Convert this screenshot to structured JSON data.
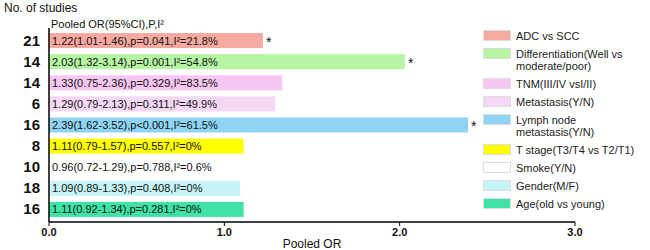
{
  "chart_data": {
    "type": "bar",
    "orientation": "horizontal",
    "categories": [
      "ADC vs SCC",
      "Differentiation(Well vs moderate/poor)",
      "TNM(III/IV vsI/II)",
      "Metastasis(Y/N)",
      "Lymph node metastasis(Y/N)",
      "T stage(T3/T4 vs T2/T1)",
      "Smoke(Y/N)",
      "Gender(M/F)",
      "Age(old vs young)"
    ],
    "values": [
      1.22,
      2.03,
      1.33,
      1.29,
      2.39,
      1.11,
      0.96,
      1.09,
      1.11
    ],
    "value_labels": [
      "1.22(1.01-1.46),p=0.041,I²=21.8%",
      "2.03(1.32-3.14),p=0.001,I²=54.8%",
      "1.33(0.75-2.36),p=0.329,I²=83.5%",
      "1.29(0.79-2.13),p=0.311,I²=49.9%",
      "2.39(1.62-3.52),p<0.001,I²=61.5%",
      "1.11(0.79-1.57),p=0.557,I²=0%",
      "0.96(0.72-1.29),p=0.788,I²=0.6%",
      "1.09(0.89-1.33),p=0.408,I²=0%",
      "1.11(0.92-1.34),p=0.281,I²=0%"
    ],
    "colors": [
      "#f6a9a0",
      "#b6f5a4",
      "#f7c6f2",
      "#f5d8f6",
      "#8fd4f2",
      "#ffff00",
      "#ffffff",
      "#c6f4f7",
      "#3fe3a6"
    ],
    "studies": [
      21,
      14,
      14,
      6,
      16,
      8,
      10,
      18,
      16
    ],
    "studies_label": "No. of studies",
    "value_labels_title": "Pooled OR(95%CI),P,I²",
    "significance": [
      "*",
      "*",
      null,
      null,
      "*",
      null,
      null,
      null,
      null
    ],
    "x_label": "Pooled OR",
    "xlim": [
      0,
      3
    ],
    "xticks": [
      {
        "value": 0,
        "label": "0.0"
      },
      {
        "value": 1,
        "label": "1.0"
      },
      {
        "value": 2,
        "label": "2.0"
      },
      {
        "value": 3,
        "label": "3.0"
      }
    ],
    "data_labels": true,
    "legend": "right",
    "grid": false
  }
}
